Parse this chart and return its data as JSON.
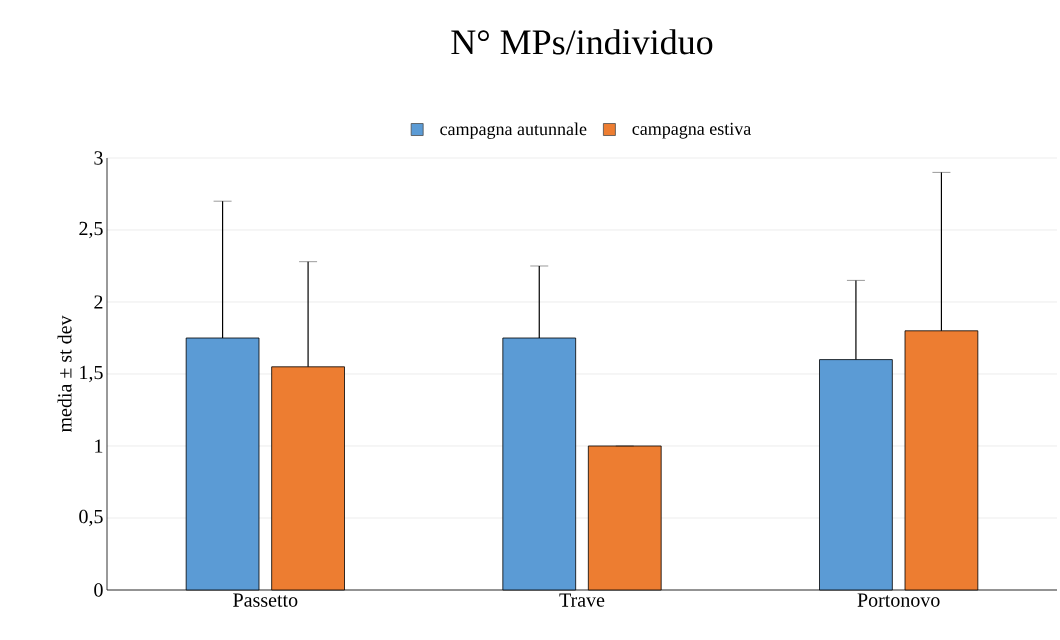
{
  "chart_data": {
    "type": "bar",
    "title": "N° MPs/individuo",
    "ylabel": "media ± st dev",
    "categories": [
      "Passetto",
      "Trave",
      "Portonovo"
    ],
    "series": [
      {
        "name": "campagna autunnale",
        "color": "#5b9bd5",
        "values": [
          1.75,
          1.75,
          1.6
        ],
        "errors": [
          [
            1.75,
            2.7
          ],
          [
            1.75,
            2.25
          ],
          [
            1.6,
            2.15
          ]
        ]
      },
      {
        "name": "campagna estiva",
        "color": "#ed7d31",
        "values": [
          1.55,
          1.0,
          1.8
        ],
        "errors": [
          [
            1.55,
            2.28
          ],
          [
            1.0,
            1.0
          ],
          [
            1.8,
            2.9
          ]
        ]
      }
    ],
    "ylim": [
      0,
      3
    ],
    "yticks": [
      0,
      {
        "value": 0.5,
        "label": "0,5"
      },
      1,
      {
        "value": 1.5,
        "label": "1,5"
      },
      2,
      {
        "value": 2.5,
        "label": "2,5"
      },
      3
    ],
    "grid": "y",
    "legend": "top"
  }
}
